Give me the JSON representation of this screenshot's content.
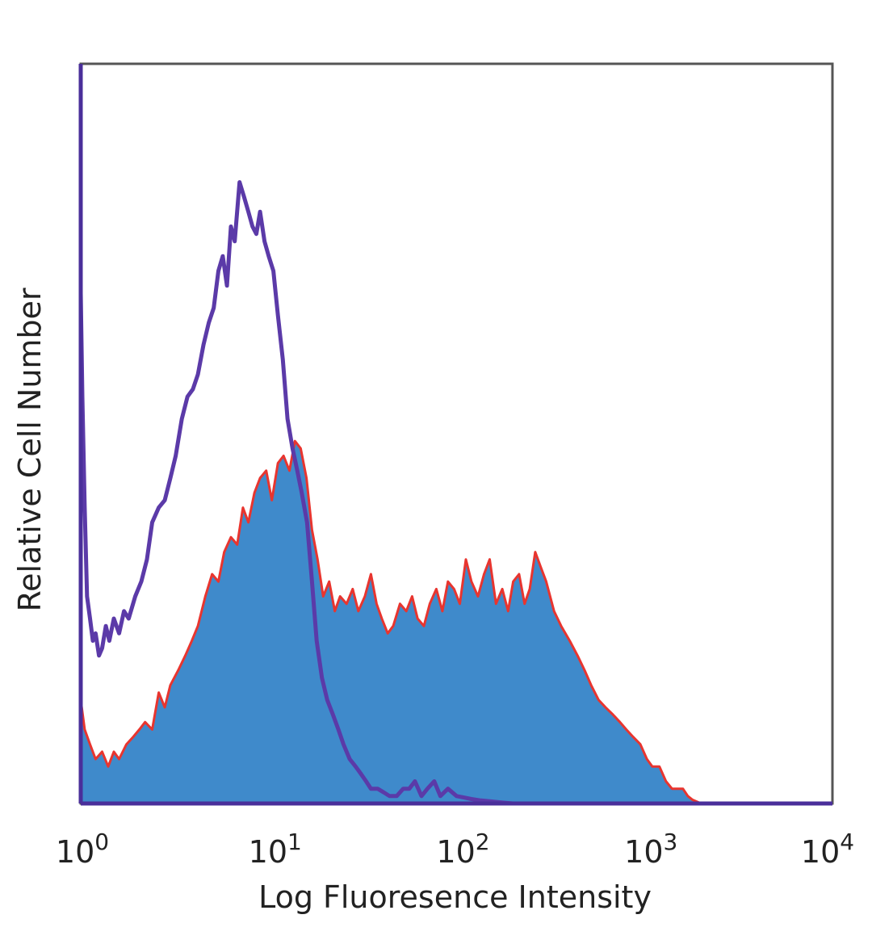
{
  "chart_data": {
    "type": "area",
    "title": "",
    "xlabel": "Log Fluoresence Intensity",
    "ylabel": "Relative Cell Number",
    "xscale": "log",
    "xlim": [
      1,
      10000
    ],
    "ylim": [
      0,
      100
    ],
    "grid": false,
    "legend": "none",
    "xticks": [
      {
        "base": "10",
        "exp": "0",
        "value": 1
      },
      {
        "base": "10",
        "exp": "1",
        "value": 10
      },
      {
        "base": "10",
        "exp": "2",
        "value": 100
      },
      {
        "base": "10",
        "exp": "3",
        "value": 1000
      },
      {
        "base": "10",
        "exp": "4",
        "value": 10000
      }
    ],
    "series": [
      {
        "style": "filled",
        "fill": "#3f8acb",
        "stroke": "#e8352f",
        "x": [
          1,
          1.05,
          1.12,
          1.2,
          1.3,
          1.4,
          1.5,
          1.6,
          1.75,
          1.9,
          2.05,
          2.2,
          2.4,
          2.6,
          2.8,
          3.0,
          3.3,
          3.6,
          3.9,
          4.2,
          4.6,
          5.0,
          5.4,
          5.8,
          6.3,
          6.8,
          7.3,
          7.8,
          8.4,
          9.0,
          9.7,
          10.4,
          11.2,
          12.0,
          12.9,
          13.8,
          14.8,
          15.9,
          17,
          18.2,
          19.5,
          21,
          22.5,
          24,
          26,
          28,
          30,
          32.5,
          35,
          37.5,
          40,
          43,
          46,
          50,
          54,
          58,
          62,
          67,
          72,
          78,
          84,
          90,
          97,
          104,
          112,
          120,
          130,
          140,
          150,
          162,
          175,
          188,
          200,
          215,
          230,
          245,
          262,
          280,
          300,
          330,
          360,
          400,
          440,
          480,
          520,
          570,
          620,
          680,
          740,
          800,
          870,
          950,
          1030,
          1100,
          1200,
          1300,
          1400,
          1500,
          1600,
          1700,
          1800,
          2000,
          3000,
          5000,
          10000
        ],
        "y": [
          14,
          10,
          8,
          6,
          7,
          5,
          7,
          6,
          8,
          9,
          10,
          11,
          10,
          15,
          13,
          16,
          18,
          20,
          22,
          24,
          28,
          31,
          30,
          34,
          36,
          35,
          40,
          38,
          42,
          44,
          45,
          41,
          46,
          47,
          45,
          49,
          48,
          44,
          37,
          33,
          28,
          30,
          26,
          28,
          27,
          29,
          26,
          28,
          31,
          27,
          25,
          23,
          24,
          27,
          26,
          28,
          25,
          24,
          27,
          29,
          26,
          30,
          29,
          27,
          33,
          30,
          28,
          31,
          33,
          27,
          29,
          26,
          30,
          31,
          27,
          29,
          34,
          32,
          30,
          26,
          24,
          22,
          20,
          18,
          16,
          14,
          13,
          12,
          11,
          10,
          9,
          8,
          6,
          5,
          5,
          3,
          2,
          2,
          2,
          1,
          0.5,
          0,
          0,
          0,
          0
        ]
      },
      {
        "style": "outline",
        "stroke": "#5b3aa8",
        "x": [
          1,
          1.02,
          1.05,
          1.08,
          1.12,
          1.16,
          1.2,
          1.25,
          1.3,
          1.36,
          1.42,
          1.5,
          1.6,
          1.7,
          1.8,
          1.95,
          2.1,
          2.25,
          2.4,
          2.6,
          2.8,
          3.0,
          3.2,
          3.45,
          3.7,
          3.95,
          4.2,
          4.5,
          4.8,
          5.1,
          5.4,
          5.7,
          6.0,
          6.3,
          6.6,
          7.0,
          7.4,
          7.8,
          8.2,
          8.6,
          9.0,
          9.5,
          10.0,
          10.6,
          11.2,
          11.9,
          12.6,
          13.4,
          14.2,
          15.0,
          16,
          17,
          18,
          19.2,
          20.5,
          22,
          23.5,
          25,
          27,
          29,
          31,
          33,
          35,
          38,
          41,
          44,
          48,
          52,
          56,
          60,
          65,
          70,
          76,
          82,
          90,
          100,
          110,
          120,
          135,
          150,
          165,
          180,
          200,
          300,
          500,
          1000,
          3000,
          10000
        ],
        "y": [
          69,
          55,
          40,
          28,
          25,
          22,
          23,
          20,
          21,
          24,
          22,
          25,
          23,
          26,
          25,
          28,
          30,
          33,
          38,
          40,
          41,
          44,
          47,
          52,
          55,
          56,
          58,
          62,
          65,
          67,
          72,
          74,
          70,
          78,
          76,
          84,
          82,
          80,
          78,
          77,
          80,
          76,
          74,
          72,
          66,
          60,
          52,
          48,
          45,
          42,
          38,
          30,
          22,
          17,
          14,
          12,
          10,
          8,
          6,
          5,
          4,
          3,
          2,
          2,
          1.5,
          1,
          1,
          2,
          2,
          3,
          1,
          2,
          3,
          1,
          2,
          1,
          0.8,
          0.6,
          0.4,
          0.3,
          0.2,
          0.1,
          0,
          0,
          0,
          0,
          0,
          0
        ]
      }
    ]
  }
}
